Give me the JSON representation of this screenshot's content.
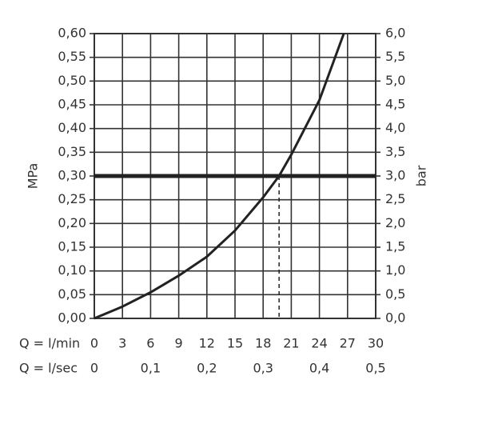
{
  "chart_data": {
    "type": "line",
    "y_label": "MPa",
    "y2_label": "bar",
    "x_label": "Q = l/min",
    "x2_label": "Q = l/sec",
    "x": [
      0,
      3,
      6,
      9,
      12,
      15,
      18,
      19.7,
      21,
      24,
      26.6
    ],
    "series": [
      {
        "color": "#222222",
        "values": [
          0,
          0.025,
          0.055,
          0.09,
          0.13,
          0.185,
          0.255,
          0.3,
          0.345,
          0.46,
          0.6
        ]
      }
    ],
    "xlim": [
      0,
      30
    ],
    "xticks": [
      0,
      3,
      6,
      9,
      12,
      15,
      18,
      21,
      24,
      27,
      30
    ],
    "x2lim": [
      0,
      0.5
    ],
    "x2ticks": [
      0,
      {
        "value": 0.1,
        "label": "0,1"
      },
      {
        "value": 0.2,
        "label": "0,2"
      },
      {
        "value": 0.3,
        "label": "0,3"
      },
      {
        "value": 0.4,
        "label": "0,4"
      },
      {
        "value": 0.5,
        "label": "0,5"
      }
    ],
    "ylim": [
      0,
      0.6
    ],
    "yticks": [
      {
        "value": 0,
        "label": "0,00"
      },
      {
        "value": 0.05,
        "label": "0,05"
      },
      {
        "value": 0.1,
        "label": "0,10"
      },
      {
        "value": 0.15,
        "label": "0,15"
      },
      {
        "value": 0.2,
        "label": "0,20"
      },
      {
        "value": 0.25,
        "label": "0,25"
      },
      {
        "value": 0.3,
        "label": "0,30"
      },
      {
        "value": 0.35,
        "label": "0,35"
      },
      {
        "value": 0.4,
        "label": "0,40"
      },
      {
        "value": 0.45,
        "label": "0,45"
      },
      {
        "value": 0.5,
        "label": "0,50"
      },
      {
        "value": 0.55,
        "label": "0,55"
      },
      {
        "value": 0.6,
        "label": "0,60"
      }
    ],
    "y2lim": [
      0,
      6
    ],
    "y2ticks": [
      {
        "value": 0,
        "label": "0,0"
      },
      {
        "value": 0.5,
        "label": "0,5"
      },
      {
        "value": 1,
        "label": "1,0"
      },
      {
        "value": 1.5,
        "label": "1,5"
      },
      {
        "value": 2,
        "label": "2,0"
      },
      {
        "value": 2.5,
        "label": "2,5"
      },
      {
        "value": 3,
        "label": "3,0"
      },
      {
        "value": 3.5,
        "label": "3,5"
      },
      {
        "value": 4,
        "label": "4,0"
      },
      {
        "value": 4.5,
        "label": "4,5"
      },
      {
        "value": 5,
        "label": "5,0"
      },
      {
        "value": 5.5,
        "label": "5,5"
      },
      {
        "value": 6,
        "label": "6,0"
      }
    ],
    "reference_y": 0.3,
    "marker_x": 19.7,
    "grid": true
  }
}
